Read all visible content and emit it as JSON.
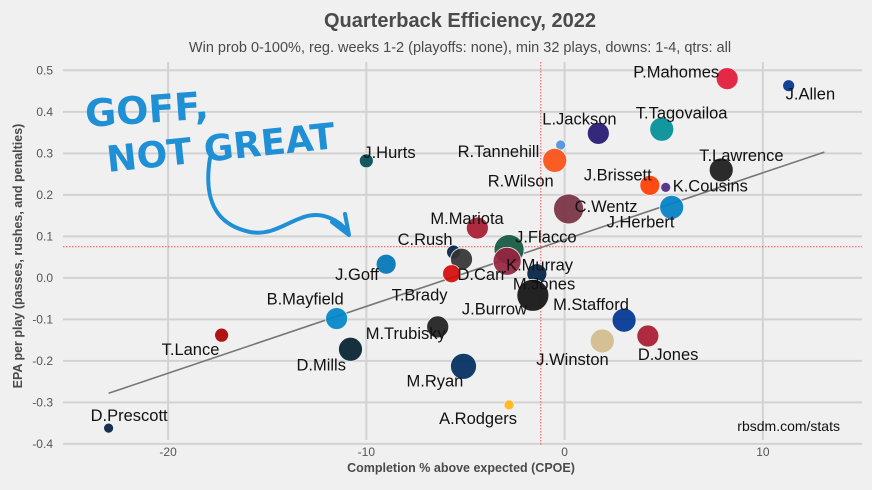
{
  "chart_data": {
    "type": "scatter",
    "title": "Quarterback Efficiency, 2022",
    "subtitle": "Win prob 0-100%, reg. weeks 1-2 (playoffs: none), min 32 plays, downs: 1-4, qtrs: all",
    "xlabel": "Completion % above expected (CPOE)",
    "ylabel": "EPA per play (passes, rushes, and penalties)",
    "xlim": [
      -25.3,
      15.0
    ],
    "ylim": [
      -0.405,
      0.52
    ],
    "x_ticks": [
      -20,
      -10,
      0,
      10
    ],
    "y_ticks": [
      0.5,
      0.4,
      0.3,
      0.2,
      0.1,
      0.0,
      -0.1,
      -0.2,
      -0.3,
      -0.4
    ],
    "y_tick_labels": [
      "0.5",
      "0.4",
      "0.3",
      "0.2",
      "0.1",
      "0.0",
      "-0.1",
      "-0.2",
      "-0.3",
      "-0.4"
    ],
    "x_tick_labels": [
      "-20",
      "-10",
      "0",
      "10"
    ],
    "mean_lines": {
      "x": -1.2,
      "y": 0.075,
      "color": "#ff4d4d"
    },
    "trend_line": {
      "x": [
        -23,
        13.1
      ],
      "y": [
        -0.278,
        0.303
      ]
    },
    "grid": true,
    "credit": "rbsdm.com/stats",
    "points": [
      {
        "name": "P.Mahomes",
        "x": 8.2,
        "y": 0.48,
        "color": "#e31837",
        "size": 11
      },
      {
        "name": "J.Allen",
        "x": 11.3,
        "y": 0.463,
        "color": "#00338d",
        "size": 6
      },
      {
        "name": "L.Jackson",
        "x": 1.7,
        "y": 0.348,
        "color": "#241773",
        "size": 11
      },
      {
        "name": "T.Tagovailoa",
        "x": 4.9,
        "y": 0.358,
        "color": "#008e97",
        "size": 12
      },
      {
        "name": "J.Hurts",
        "x": -10.0,
        "y": 0.282,
        "color": "#004c54",
        "size": 7
      },
      {
        "name": "R.Tannehill",
        "x": -0.2,
        "y": 0.32,
        "color": "#4b92db",
        "size": 5
      },
      {
        "name": "R.Wilson",
        "x": -0.5,
        "y": 0.283,
        "color": "#fb4f14",
        "size": 12
      },
      {
        "name": "T.Lawrence",
        "x": 7.9,
        "y": 0.26,
        "color": "#1a1a1a",
        "size": 12
      },
      {
        "name": "J.Brissett",
        "x": 4.3,
        "y": 0.223,
        "color": "#ff3c00",
        "size": 10
      },
      {
        "name": "K.Cousins",
        "x": 5.1,
        "y": 0.218,
        "color": "#4f2683",
        "size": 5
      },
      {
        "name": "C.Wentz",
        "x": 0.2,
        "y": 0.166,
        "color": "#773141",
        "size": 15
      },
      {
        "name": "J.Herbert",
        "x": 5.4,
        "y": 0.17,
        "color": "#0080c6",
        "size": 12
      },
      {
        "name": "M.Mariota",
        "x": -4.4,
        "y": 0.12,
        "color": "#a71930",
        "size": 11
      },
      {
        "name": "C.Rush",
        "x": -5.6,
        "y": 0.062,
        "color": "#041e42",
        "size": 7
      },
      {
        "name": "J.Flacco",
        "x": -2.8,
        "y": 0.068,
        "color": "#125740",
        "size": 15
      },
      {
        "name": "K.Murray",
        "x": -2.9,
        "y": 0.04,
        "color": "#97233f",
        "size": 14
      },
      {
        "name": "J.Goff",
        "x": -9.0,
        "y": 0.033,
        "color": "#0076b6",
        "size": 10
      },
      {
        "name": "D.Carr",
        "x": -5.2,
        "y": 0.045,
        "color": "#333333",
        "size": 11
      },
      {
        "name": "T.Brady",
        "x": -5.7,
        "y": 0.01,
        "color": "#d50a0a",
        "size": 9
      },
      {
        "name": "M.Jones",
        "x": -1.4,
        "y": 0.01,
        "color": "#002244",
        "size": 10
      },
      {
        "name": "J.Burrow",
        "x": -1.6,
        "y": -0.042,
        "color": "#111111",
        "size": 16
      },
      {
        "name": "B.Mayfield",
        "x": -11.5,
        "y": -0.098,
        "color": "#0085ca",
        "size": 11
      },
      {
        "name": "M.Stafford",
        "x": 3.0,
        "y": -0.102,
        "color": "#003594",
        "size": 12
      },
      {
        "name": "T.Lance",
        "x": -17.3,
        "y": -0.138,
        "color": "#aa0000",
        "size": 7
      },
      {
        "name": "M.Trubisky",
        "x": -6.4,
        "y": -0.118,
        "color": "#1e1e1e",
        "size": 11
      },
      {
        "name": "J.Winston",
        "x": 1.9,
        "y": -0.152,
        "color": "#d3bc8d",
        "size": 12
      },
      {
        "name": "D.Jones",
        "x": 4.2,
        "y": -0.14,
        "color": "#a71930",
        "size": 11
      },
      {
        "name": "D.Mills",
        "x": -10.8,
        "y": -0.172,
        "color": "#03202f",
        "size": 12
      },
      {
        "name": "M.Ryan",
        "x": -5.1,
        "y": -0.213,
        "color": "#002c5f",
        "size": 13
      },
      {
        "name": "A.Rodgers",
        "x": -2.8,
        "y": -0.306,
        "color": "#ffb612",
        "size": 5
      },
      {
        "name": "D.Prescott",
        "x": -23.0,
        "y": -0.362,
        "color": "#041e42",
        "size": 5
      }
    ]
  },
  "annotation": {
    "line1": "GOFF,",
    "line2": "NOT GREAT",
    "color": "#1f8fd6"
  }
}
